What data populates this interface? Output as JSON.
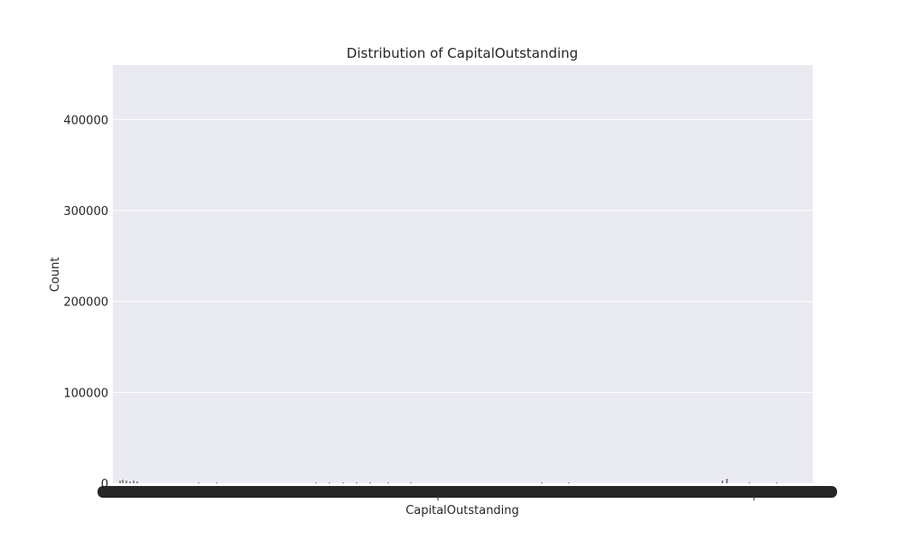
{
  "colors": {
    "plot_background": "#eaeaf2",
    "gridline": "#ffffff",
    "bar": "#4c72b0",
    "text": "#262626"
  },
  "chart_data": {
    "type": "bar",
    "title": "Distribution of CapitalOutstanding",
    "xlabel": "CapitalOutstanding",
    "ylabel": "Count",
    "ylim": [
      0,
      460000
    ],
    "yticks": [
      0,
      100000,
      200000,
      300000,
      400000
    ],
    "grid": true,
    "legend": "none",
    "x_tick_labels_overlapping": true,
    "categories": [
      "",
      ""
    ],
    "values": [
      0,
      0
    ]
  }
}
